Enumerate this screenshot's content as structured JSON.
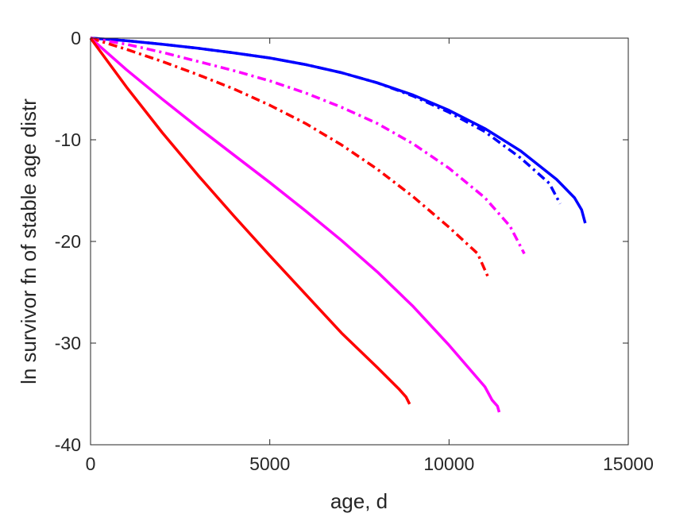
{
  "chart_data": {
    "type": "line",
    "title": "",
    "xlabel": "age, d",
    "ylabel": "ln survivor fn of stable age distr",
    "xlim": [
      0,
      15000
    ],
    "ylim": [
      -40,
      0
    ],
    "xticks": [
      0,
      5000,
      10000,
      15000
    ],
    "yticks": [
      0,
      -10,
      -20,
      -30,
      -40
    ],
    "xtick_labels": [
      "0",
      "5000",
      "10000",
      "15000"
    ],
    "ytick_labels": [
      "0",
      "-10",
      "-20",
      "-30",
      "-40"
    ],
    "grid": false,
    "legend": "none",
    "series": [
      {
        "color": "#0000ff",
        "style": "solid",
        "points": [
          [
            0,
            0
          ],
          [
            1000,
            -0.25
          ],
          [
            2000,
            -0.6
          ],
          [
            3000,
            -1.0
          ],
          [
            4000,
            -1.45
          ],
          [
            5000,
            -1.95
          ],
          [
            6000,
            -2.6
          ],
          [
            7000,
            -3.4
          ],
          [
            8000,
            -4.4
          ],
          [
            9000,
            -5.6
          ],
          [
            10000,
            -7.1
          ],
          [
            11000,
            -8.9
          ],
          [
            12000,
            -11.1
          ],
          [
            13000,
            -13.9
          ],
          [
            13500,
            -15.7
          ],
          [
            13700,
            -16.9
          ],
          [
            13800,
            -18.2
          ]
        ]
      },
      {
        "color": "#0000ff",
        "style": "dashdot",
        "points": [
          [
            0,
            0
          ],
          [
            1000,
            -0.25
          ],
          [
            2000,
            -0.6
          ],
          [
            3000,
            -1.0
          ],
          [
            4000,
            -1.45
          ],
          [
            5000,
            -1.95
          ],
          [
            6000,
            -2.6
          ],
          [
            7000,
            -3.4
          ],
          [
            8000,
            -4.4
          ],
          [
            9000,
            -5.7
          ],
          [
            10000,
            -7.3
          ],
          [
            11000,
            -9.2
          ],
          [
            12000,
            -11.8
          ],
          [
            12800,
            -14.3
          ],
          [
            13100,
            -16.3
          ]
        ]
      },
      {
        "color": "#ff00ff",
        "style": "dashdot",
        "points": [
          [
            0,
            0
          ],
          [
            1000,
            -0.6
          ],
          [
            2000,
            -1.4
          ],
          [
            3000,
            -2.3
          ],
          [
            4000,
            -3.2
          ],
          [
            5000,
            -4.2
          ],
          [
            6000,
            -5.4
          ],
          [
            7000,
            -6.8
          ],
          [
            8000,
            -8.4
          ],
          [
            9000,
            -10.4
          ],
          [
            10000,
            -12.8
          ],
          [
            11000,
            -15.7
          ],
          [
            11700,
            -18.5
          ],
          [
            12100,
            -21.2
          ]
        ]
      },
      {
        "color": "#ff0000",
        "style": "dashdot",
        "points": [
          [
            0,
            0
          ],
          [
            1000,
            -1.1
          ],
          [
            2000,
            -2.3
          ],
          [
            3000,
            -3.6
          ],
          [
            4000,
            -5.0
          ],
          [
            5000,
            -6.6
          ],
          [
            6000,
            -8.4
          ],
          [
            7000,
            -10.5
          ],
          [
            8000,
            -12.9
          ],
          [
            9000,
            -15.6
          ],
          [
            10000,
            -18.6
          ],
          [
            10800,
            -21.2
          ],
          [
            11100,
            -23.6
          ]
        ]
      },
      {
        "color": "#ff00ff",
        "style": "solid",
        "points": [
          [
            0,
            0
          ],
          [
            1000,
            -3.1
          ],
          [
            2000,
            -6.0
          ],
          [
            3000,
            -8.8
          ],
          [
            4000,
            -11.5
          ],
          [
            5000,
            -14.2
          ],
          [
            6000,
            -17.0
          ],
          [
            7000,
            -19.9
          ],
          [
            8000,
            -23.0
          ],
          [
            9000,
            -26.4
          ],
          [
            10000,
            -30.2
          ],
          [
            11000,
            -34.3
          ],
          [
            11200,
            -35.6
          ],
          [
            11350,
            -36.2
          ],
          [
            11400,
            -36.8
          ]
        ]
      },
      {
        "color": "#ff0000",
        "style": "solid",
        "points": [
          [
            0,
            0
          ],
          [
            1000,
            -4.8
          ],
          [
            2000,
            -9.3
          ],
          [
            3000,
            -13.5
          ],
          [
            4000,
            -17.5
          ],
          [
            5000,
            -21.4
          ],
          [
            6000,
            -25.2
          ],
          [
            7000,
            -29.0
          ],
          [
            8000,
            -32.4
          ],
          [
            8600,
            -34.5
          ],
          [
            8800,
            -35.3
          ],
          [
            8900,
            -36.0
          ]
        ]
      }
    ]
  }
}
